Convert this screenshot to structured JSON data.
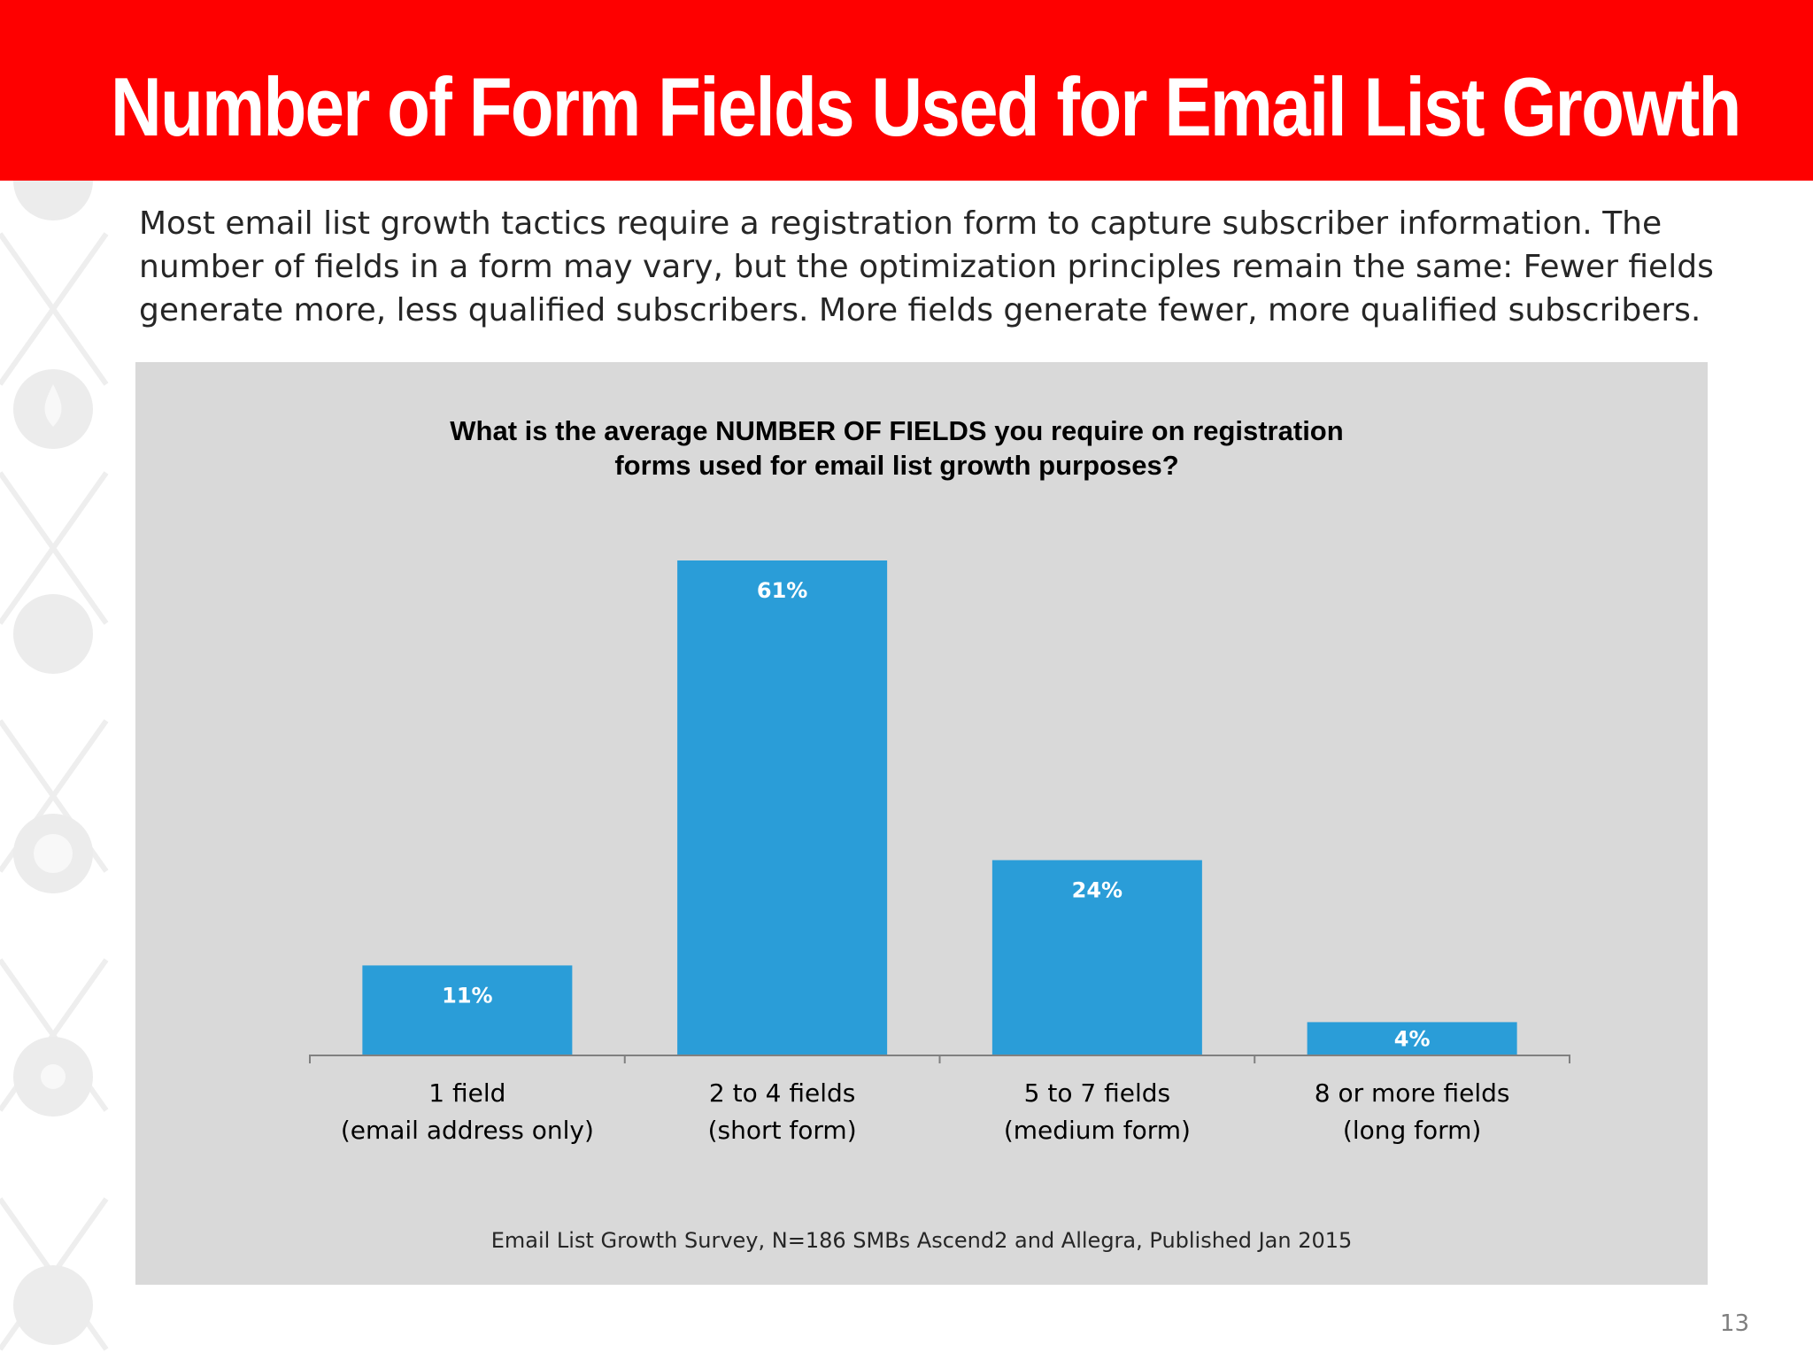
{
  "header": {
    "title": "Number of Form Fields Used for Email List Growth"
  },
  "intro": {
    "text": "Most email list growth tactics require a registration form to capture subscriber information. The number of fields in a form may vary, but the optimization principles remain the same: Fewer fields generate more, less qualified subscribers. More fields generate fewer, more qualified subscribers."
  },
  "chart_data": {
    "type": "bar",
    "title": "What is the average NUMBER OF FIELDS you require on registration forms used for email list growth purposes?",
    "title_lines": [
      "What is the average NUMBER OF FIELDS you require on registration",
      "forms used for email list growth purposes?"
    ],
    "categories": [
      [
        "1 field",
        "(email address only)"
      ],
      [
        "2 to 4 fields",
        "(short form)"
      ],
      [
        "5 to 7 fields",
        "(medium form)"
      ],
      [
        "8 or more fields",
        "(long form)"
      ]
    ],
    "values": [
      11,
      61,
      24,
      4
    ],
    "value_labels": [
      "11%",
      "61%",
      "24%",
      "4%"
    ],
    "unit": "%",
    "ylim": [
      0,
      61
    ],
    "grid": false,
    "bar_color": "#2a9dd8",
    "source": "Email List Growth Survey, N=186 SMBs Ascend2 and Allegra, Published Jan 2015"
  },
  "colors": {
    "header_bg": "#fe0000",
    "panel_bg": "#d9d9d9",
    "bar": "#2a9dd8"
  },
  "page_number": "13"
}
